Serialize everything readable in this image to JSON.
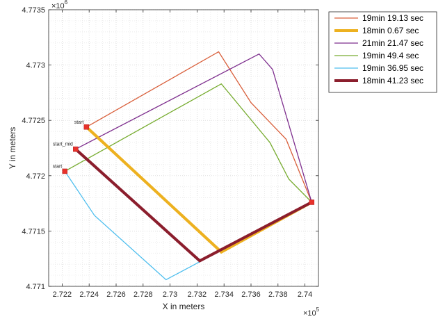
{
  "chart_data": {
    "type": "line",
    "xlabel": "X in meters",
    "ylabel": "Y in meters",
    "x_exponent_label": "×10",
    "x_exponent_power": "5",
    "y_exponent_label": "×10",
    "y_exponent_power": "6",
    "xlim": [
      272100,
      274100
    ],
    "ylim": [
      4771000,
      4773500
    ],
    "grid": true,
    "legend_position": "top-right outside",
    "x_ticks": [
      272200,
      272400,
      272600,
      272800,
      273000,
      273200,
      273400,
      273600,
      273800,
      274000
    ],
    "x_tick_labels": [
      "2.722",
      "2.724",
      "2.726",
      "2.728",
      "2.73",
      "2.732",
      "2.734",
      "2.736",
      "2.738",
      "2.74"
    ],
    "y_ticks": [
      4771000,
      4771500,
      4772000,
      4772500,
      4773000,
      4773500
    ],
    "y_tick_labels": [
      "4.771",
      "4.7715",
      "4.772",
      "4.7725",
      "4.773",
      "4.7735"
    ],
    "series": [
      {
        "name": "19min 19.13 sec",
        "color": "#d95f3b",
        "width": 1.3,
        "x": [
          272380,
          273360,
          273600,
          273860,
          274050
        ],
        "y": [
          4772440,
          4773120,
          4772660,
          4772330,
          4771760
        ]
      },
      {
        "name": "18min 0.67 sec",
        "color": "#edb120",
        "width": 4,
        "x": [
          272380,
          273380,
          274050
        ],
        "y": [
          4772440,
          4771310,
          4771760
        ]
      },
      {
        "name": "21min 21.47 sec",
        "color": "#7e2f8e",
        "width": 1.3,
        "x": [
          272300,
          273660,
          273760,
          274050
        ],
        "y": [
          4772240,
          4773100,
          4772960,
          4771760
        ]
      },
      {
        "name": "19min 49.4 sec",
        "color": "#77ac30",
        "width": 1.3,
        "x": [
          272220,
          273380,
          273740,
          273880,
          274050
        ],
        "y": [
          4772040,
          4772830,
          4772300,
          4771970,
          4771760
        ]
      },
      {
        "name": "19min 36.95 sec",
        "color": "#4dbeee",
        "width": 1.3,
        "x": [
          272220,
          272440,
          272970,
          274050
        ],
        "y": [
          4772040,
          4771640,
          4771060,
          4771760
        ]
      },
      {
        "name": "18min 41.23 sec",
        "color": "#8b1e2d",
        "width": 4,
        "x": [
          272300,
          273220,
          274050
        ],
        "y": [
          4772240,
          4771230,
          4771760
        ]
      }
    ],
    "markers": [
      {
        "x": 272380,
        "y": 4772440
      },
      {
        "x": 272300,
        "y": 4772240
      },
      {
        "x": 272220,
        "y": 4772040
      },
      {
        "x": 274050,
        "y": 4771760
      }
    ],
    "annotations": [
      {
        "text": "start",
        "x": 272380,
        "y": 4772440
      },
      {
        "text": "start_mid",
        "x": 272300,
        "y": 4772240
      },
      {
        "text": "start",
        "x": 272220,
        "y": 4772040
      }
    ]
  }
}
